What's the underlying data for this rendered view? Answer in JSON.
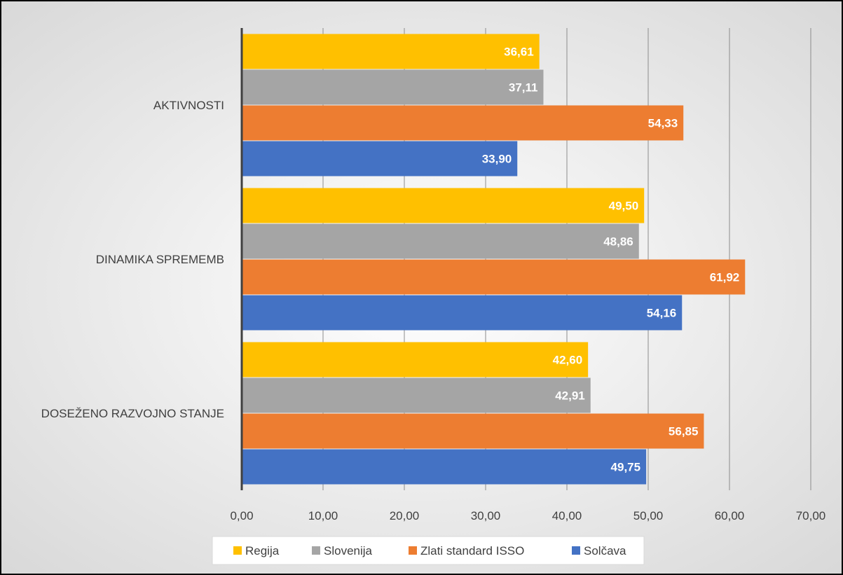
{
  "chart_data": {
    "type": "bar",
    "orientation": "horizontal",
    "categories": [
      "AKTIVNOSTI",
      "DINAMIKA SPREMEMB",
      "DOSEŽENO RAZVOJNO STANJE"
    ],
    "series": [
      {
        "name": "Regija",
        "color": "#ffc000",
        "values": [
          36.61,
          49.5,
          42.6
        ],
        "labels": [
          "36,61",
          "49,50",
          "42,60"
        ]
      },
      {
        "name": "Slovenija",
        "color": "#a5a5a5",
        "values": [
          37.11,
          48.86,
          42.91
        ],
        "labels": [
          "37,11",
          "48,86",
          "42,91"
        ]
      },
      {
        "name": "Zlati standard ISSO",
        "color": "#ed7d31",
        "values": [
          54.33,
          61.92,
          56.85
        ],
        "labels": [
          "54,33",
          "61,92",
          "56,85"
        ]
      },
      {
        "name": "Solčava",
        "color": "#4472c4",
        "values": [
          33.9,
          54.16,
          49.75
        ],
        "labels": [
          "33,90",
          "54,16",
          "49,75"
        ]
      }
    ],
    "xlim": [
      0,
      70
    ],
    "ticks": [
      0,
      10,
      20,
      30,
      40,
      50,
      60,
      70
    ],
    "tick_labels": [
      "0,00",
      "10,00",
      "20,00",
      "30,00",
      "40,00",
      "50,00",
      "60,00",
      "70,00"
    ],
    "grid": true,
    "legend_position": "bottom",
    "title": "",
    "xlabel": "",
    "ylabel": ""
  }
}
